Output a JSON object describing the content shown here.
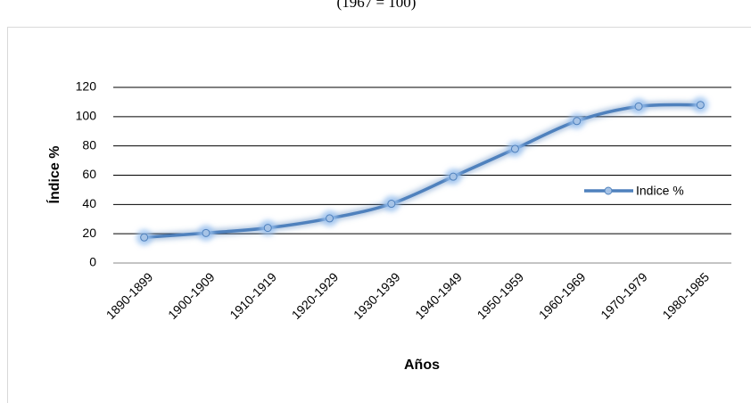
{
  "chart_data": {
    "type": "line",
    "title": "(1967 = 100)",
    "categories": [
      "1890-1899",
      "1900-1909",
      "1910-1919",
      "1920-1929",
      "1930-1939",
      "1940-1949",
      "1950-1959",
      "1960-1969",
      "1970-1979",
      "1980-1985"
    ],
    "series": [
      {
        "name": "Indice %",
        "color": "#4f81bd",
        "values": [
          17.5,
          20.5,
          24,
          30.5,
          40.5,
          59,
          78,
          97,
          107,
          108
        ]
      }
    ],
    "x_label": "Años",
    "y_label": "Índice %",
    "ylim": [
      0,
      120
    ],
    "yticks": [
      0,
      20,
      40,
      60,
      80,
      100,
      120
    ],
    "grid": true,
    "legend": "right",
    "smooth": true
  }
}
